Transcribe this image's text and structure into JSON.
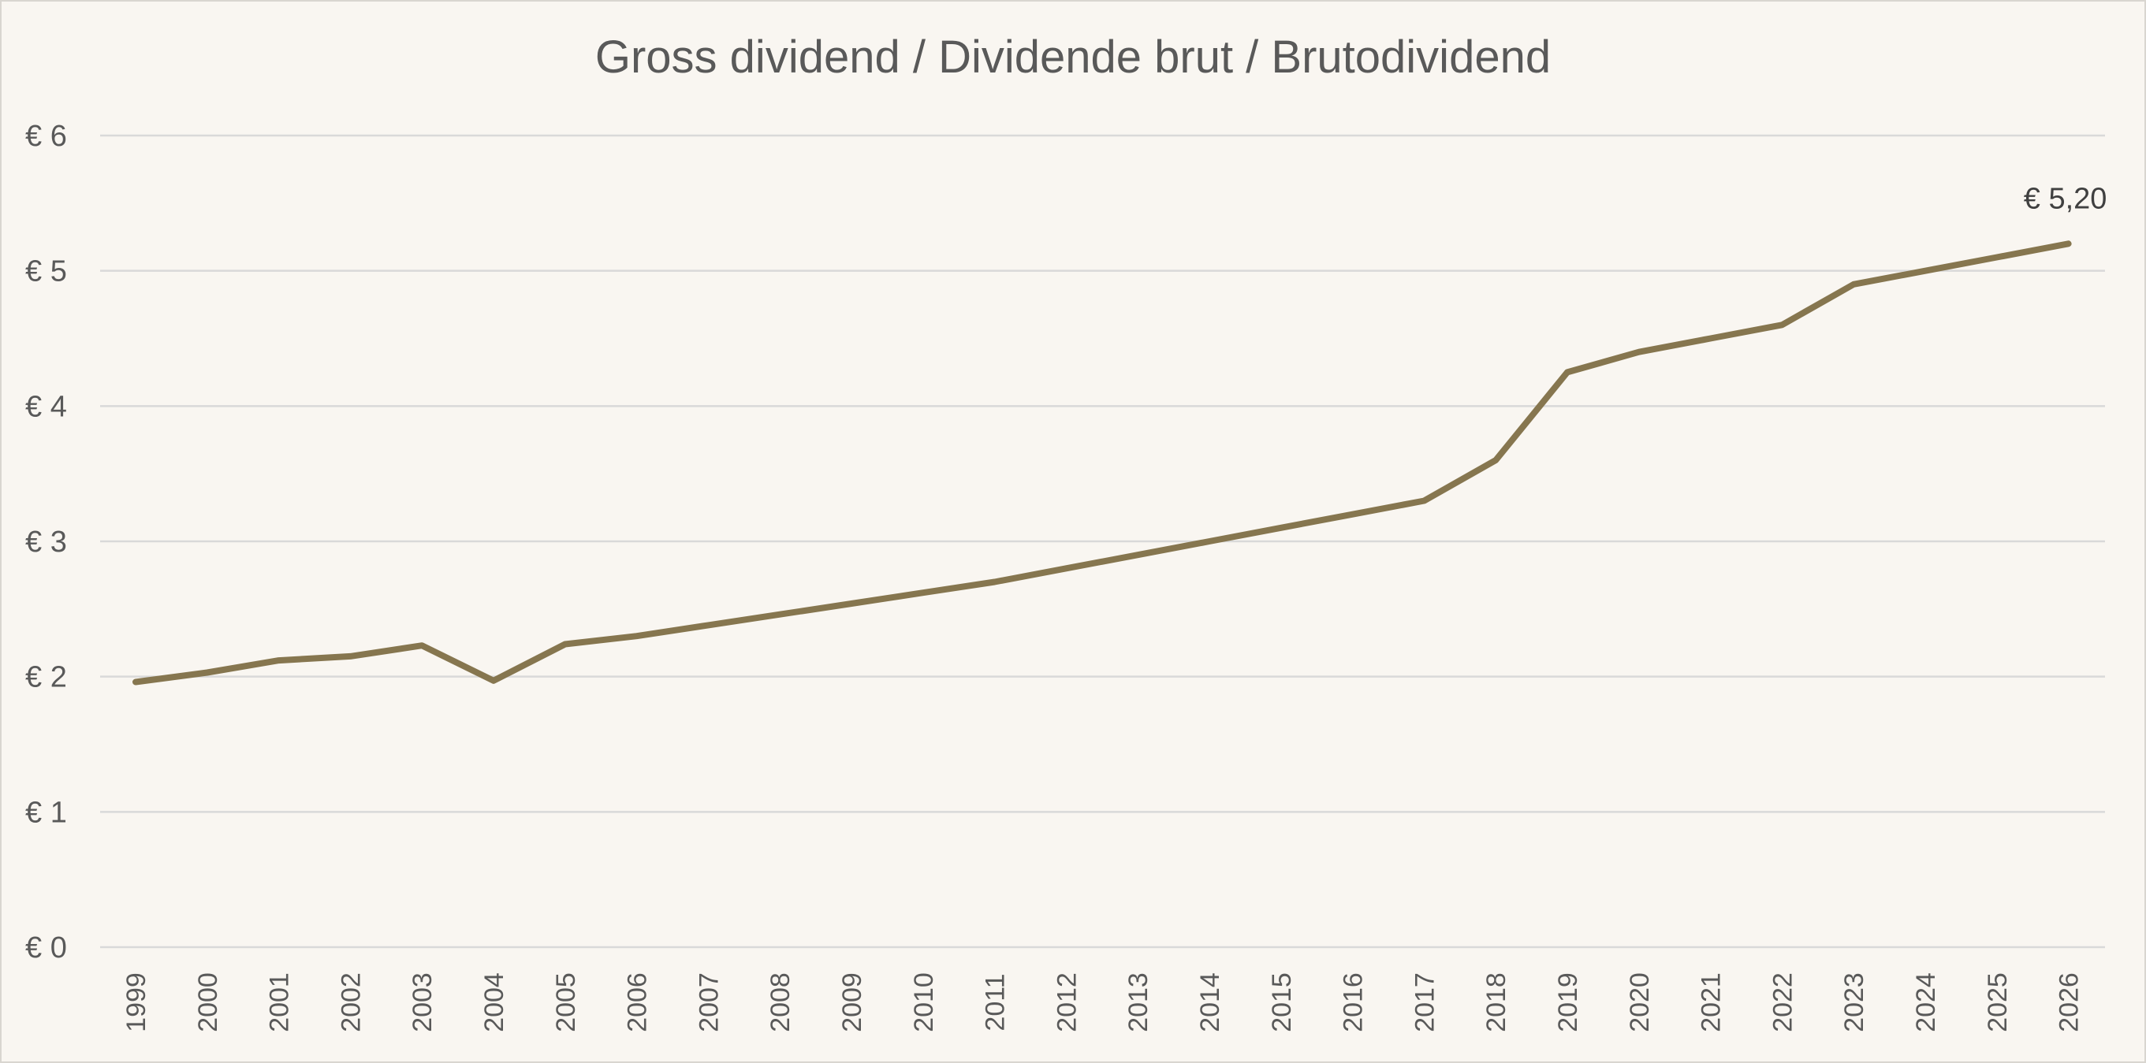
{
  "chart_data": {
    "type": "line",
    "title": "Gross dividend / Dividende brut / Brutodividend",
    "xlabel": "",
    "ylabel": "",
    "x": [
      "1999",
      "2000",
      "2001",
      "2002",
      "2003",
      "2004",
      "2005",
      "2006",
      "2007",
      "2008",
      "2009",
      "2010",
      "2011",
      "2012",
      "2013",
      "2014",
      "2015",
      "2016",
      "2017",
      "2018",
      "2019",
      "2020",
      "2021",
      "2022",
      "2023",
      "2024",
      "2025",
      "2026"
    ],
    "series": [
      {
        "color": "#86764f",
        "values": [
          1.96,
          2.03,
          2.12,
          2.15,
          2.23,
          1.97,
          2.24,
          2.3,
          2.38,
          2.46,
          2.54,
          2.62,
          2.7,
          2.8,
          2.9,
          3.0,
          3.1,
          3.2,
          3.3,
          3.6,
          4.25,
          4.4,
          4.5,
          4.6,
          4.9,
          5.0,
          5.1,
          5.2
        ]
      }
    ],
    "y_ticks": [
      "€ 0",
      "€ 1",
      "€ 2",
      "€ 3",
      "€ 4",
      "€ 5",
      "€ 6"
    ],
    "ylim": [
      0,
      6
    ],
    "grid": true,
    "legend": "none",
    "annotations": [
      {
        "x": "2026",
        "value": 5.2,
        "text": "€ 5,20"
      }
    ]
  }
}
